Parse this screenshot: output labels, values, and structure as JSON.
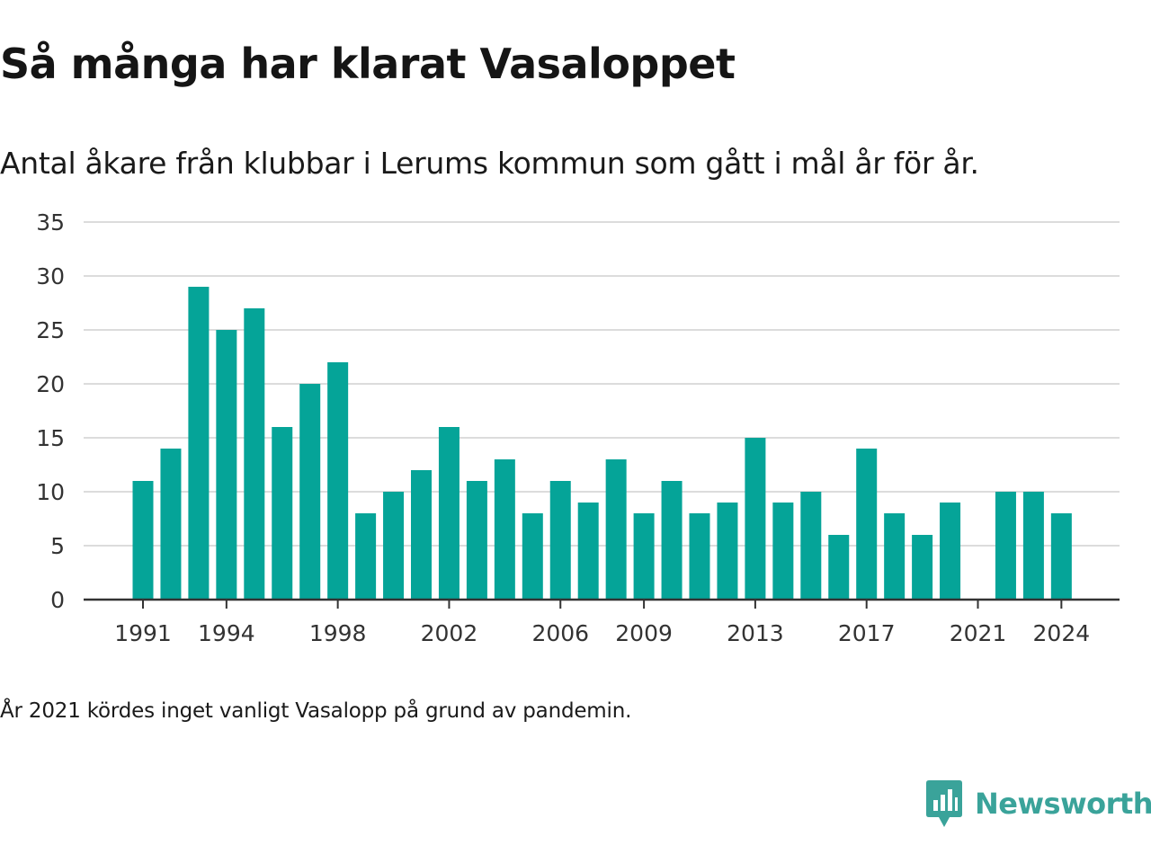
{
  "title": "Så många har klarat Vasaloppet",
  "subtitle": "Antal åkare från klubbar i Lerums kommun som gått i mål år för år.",
  "note": "År 2021 kördes inget vanligt Vasalopp på grund av pandemin.",
  "brand": {
    "name": "Newsworthy",
    "color": "#3aa39a"
  },
  "chart_data": {
    "type": "bar",
    "title": "",
    "xlabel": "",
    "ylabel": "",
    "categories": [
      "1991",
      "1992",
      "1993",
      "1994",
      "1995",
      "1996",
      "1997",
      "1998",
      "1999",
      "2000",
      "2001",
      "2002",
      "2003",
      "2004",
      "2005",
      "2006",
      "2007",
      "2008",
      "2009",
      "2010",
      "2011",
      "2012",
      "2013",
      "2014",
      "2015",
      "2016",
      "2017",
      "2018",
      "2019",
      "2020",
      "2021",
      "2022",
      "2023",
      "2024"
    ],
    "values": [
      11,
      14,
      29,
      25,
      27,
      16,
      20,
      22,
      8,
      10,
      12,
      16,
      11,
      13,
      8,
      11,
      9,
      13,
      8,
      11,
      8,
      9,
      15,
      9,
      10,
      6,
      14,
      8,
      6,
      9,
      0,
      10,
      10,
      8
    ],
    "x_tick_labels": [
      "1991",
      "1994",
      "1998",
      "2002",
      "2006",
      "2009",
      "2013",
      "2017",
      "2021",
      "2024"
    ],
    "y_ticks": [
      0,
      5,
      10,
      15,
      20,
      25,
      30,
      35
    ],
    "ylim": [
      0,
      35
    ],
    "grid": true,
    "legend": "none",
    "bar_color": "#05a498"
  }
}
